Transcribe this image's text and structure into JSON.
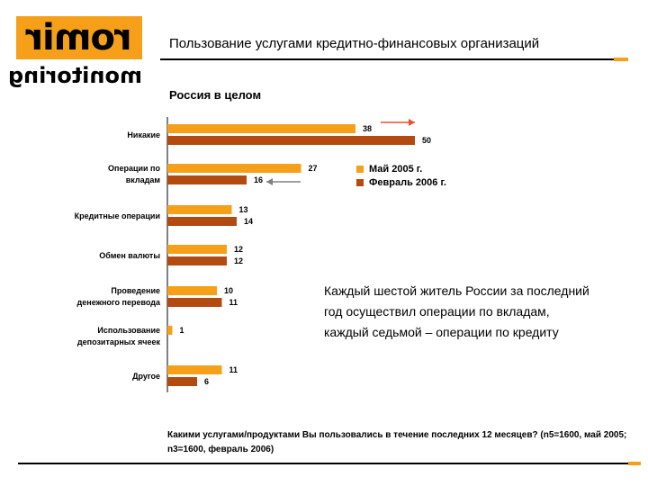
{
  "logo": {
    "top": "romir",
    "bottom": "monitoring"
  },
  "header": {
    "title": "Пользование услугами кредитно-финансовых организаций",
    "subtitle": "Россия в целом"
  },
  "chart_data": {
    "type": "bar",
    "orientation": "horizontal",
    "categories": [
      "Никакие",
      "Операции по вкладам",
      "Кредитные операции",
      "Обмен валюты",
      "Проведение денежного перевода",
      "Использование депозитарных ячеек",
      "Другое"
    ],
    "series": [
      {
        "name": "Май 2005 г.",
        "color": "#f6a01a",
        "values": [
          38,
          27,
          13,
          12,
          10,
          1,
          11
        ]
      },
      {
        "name": "Февраль 2006 г.",
        "color": "#b34a10",
        "values": [
          50,
          16,
          14,
          12,
          11,
          null,
          6
        ]
      }
    ],
    "legend_position": "right",
    "arrows": [
      {
        "category": "Никакие",
        "direction": "right",
        "color": "#e8502a"
      },
      {
        "category": "Операции по вкладам",
        "direction": "left",
        "color": "#808080"
      }
    ]
  },
  "annotation": "Каждый шестой житель России за последний год осуществил операции по вкладам, каждый седьмой – операции по кредиту",
  "footnote": "Какими услугами/продуктами Вы пользовались в течение последних 12 месяцев? (n5=1600, май 2005; n3=1600, февраль 2006)"
}
